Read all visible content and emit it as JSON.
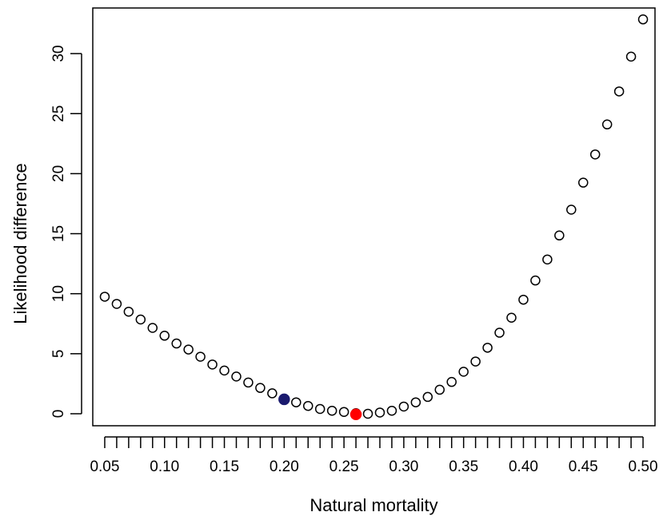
{
  "chart_data": {
    "type": "scatter",
    "xlabel": "Natural mortality",
    "ylabel": "Likelihood difference",
    "xlim": [
      0.04,
      0.51
    ],
    "ylim": [
      -1.0,
      33.8
    ],
    "x_ticks": [
      0.05,
      0.06,
      0.07,
      0.08,
      0.09,
      0.1,
      0.11,
      0.12,
      0.13,
      0.14,
      0.15,
      0.16,
      0.17,
      0.18,
      0.19,
      0.2,
      0.21,
      0.22,
      0.23,
      0.24,
      0.25,
      0.26,
      0.27,
      0.28,
      0.29,
      0.3,
      0.31,
      0.32,
      0.33,
      0.34,
      0.35,
      0.36,
      0.37,
      0.38,
      0.39,
      0.4,
      0.41,
      0.42,
      0.43,
      0.44,
      0.45,
      0.46,
      0.47,
      0.48,
      0.49,
      0.5
    ],
    "x_tick_labels": [
      "0.05",
      "0.10",
      "0.15",
      "0.20",
      "0.25",
      "0.30",
      "0.35",
      "0.40",
      "0.45",
      "0.50"
    ],
    "x_tick_label_values": [
      0.05,
      0.1,
      0.15,
      0.2,
      0.25,
      0.3,
      0.35,
      0.4,
      0.45,
      0.5
    ],
    "y_ticks": [
      0,
      5,
      10,
      15,
      20,
      25,
      30
    ],
    "y_tick_labels": [
      "0",
      "5",
      "10",
      "15",
      "20",
      "25",
      "30"
    ],
    "grid": false,
    "legend": "none",
    "series": [
      {
        "marker": "open-circle",
        "color": "#000000",
        "x": [
          0.05,
          0.06,
          0.07,
          0.08,
          0.09,
          0.1,
          0.11,
          0.12,
          0.13,
          0.14,
          0.15,
          0.16,
          0.17,
          0.18,
          0.19,
          0.2,
          0.21,
          0.22,
          0.23,
          0.24,
          0.25,
          0.26,
          0.27,
          0.28,
          0.29,
          0.3,
          0.31,
          0.32,
          0.33,
          0.34,
          0.35,
          0.36,
          0.37,
          0.38,
          0.39,
          0.4,
          0.41,
          0.42,
          0.43,
          0.44,
          0.45,
          0.46,
          0.47,
          0.48,
          0.49,
          0.5
        ],
        "y": [
          9.75,
          9.15,
          8.5,
          7.85,
          7.15,
          6.5,
          5.85,
          5.35,
          4.75,
          4.1,
          3.6,
          3.1,
          2.6,
          2.15,
          1.7,
          1.2,
          0.95,
          0.65,
          0.4,
          0.25,
          0.15,
          0.05,
          0.0,
          0.1,
          0.25,
          0.6,
          0.95,
          1.4,
          2.0,
          2.65,
          3.5,
          4.35,
          5.5,
          6.75,
          8.0,
          9.5,
          11.1,
          12.85,
          14.85,
          17.0,
          19.25,
          21.6,
          24.1,
          26.85,
          29.75,
          32.85
        ]
      },
      {
        "marker": "filled-circle",
        "color": "#1a1a6e",
        "x": [
          0.2
        ],
        "y": [
          1.2
        ]
      },
      {
        "marker": "filled-circle",
        "color": "#ff0000",
        "x": [
          0.26
        ],
        "y": [
          -0.05
        ]
      }
    ]
  }
}
